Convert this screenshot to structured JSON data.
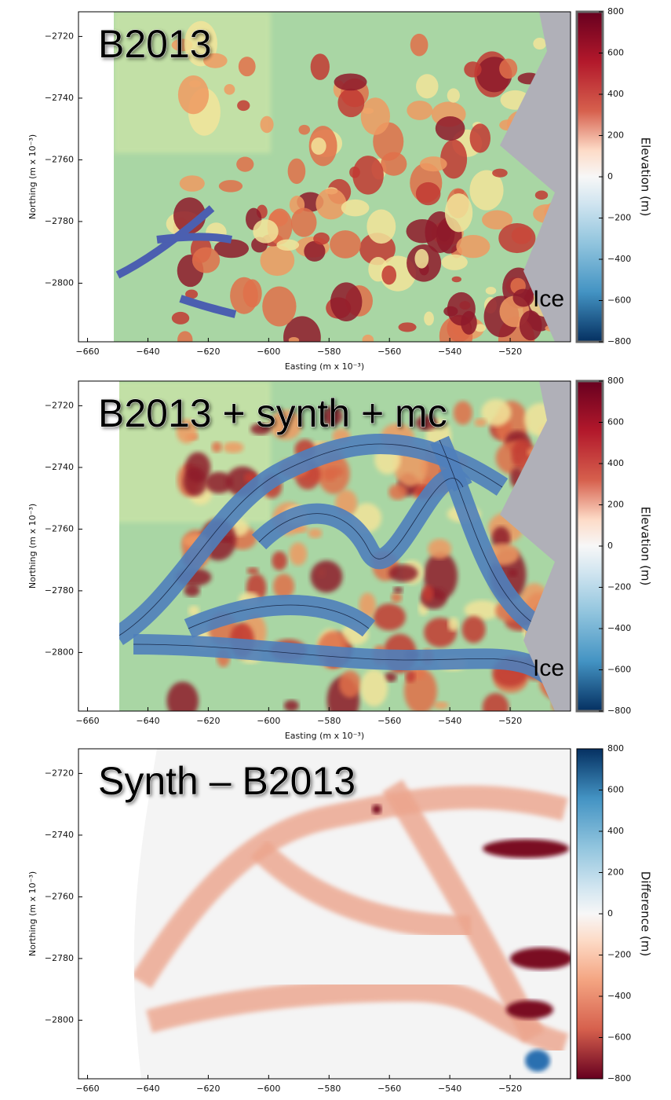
{
  "chart_data": [
    {
      "type": "heatmap",
      "title": "B2013",
      "annotation": "Ice",
      "xlabel": "Easting (m x 10⁻³)",
      "ylabel": "Northing (m x 10⁻³)",
      "xlim": [
        -663,
        -500
      ],
      "ylim": [
        -2819,
        -2712
      ],
      "xticks": [
        {
          "value": -660,
          "label": "−660"
        },
        {
          "value": -640,
          "label": "−640"
        },
        {
          "value": -620,
          "label": "−620"
        },
        {
          "value": -600,
          "label": "−600"
        },
        {
          "value": -580,
          "label": "−580"
        },
        {
          "value": -560,
          "label": "−560"
        },
        {
          "value": -540,
          "label": "−540"
        },
        {
          "value": -520,
          "label": "−520"
        }
      ],
      "yticks": [
        {
          "value": -2720,
          "label": "−2720"
        },
        {
          "value": -2740,
          "label": "−2740"
        },
        {
          "value": -2760,
          "label": "−2760"
        },
        {
          "value": -2780,
          "label": "−2780"
        },
        {
          "value": -2800,
          "label": "−2800"
        }
      ],
      "colorbar": {
        "label": "Elevation (m)",
        "colormap": "RdBu_r",
        "lim": [
          -800,
          800
        ],
        "ticks": [
          {
            "value": -800,
            "label": "−800"
          },
          {
            "value": -600,
            "label": "−600"
          },
          {
            "value": -400,
            "label": "−400"
          },
          {
            "value": -200,
            "label": "−200"
          },
          0,
          200,
          400,
          600,
          800
        ]
      }
    },
    {
      "type": "heatmap",
      "title": "B2013 + synth + mc",
      "annotation": "Ice",
      "xlabel": "Easting (m x 10⁻³)",
      "ylabel": "Northing (m x 10⁻³)",
      "xlim": [
        -663,
        -500
      ],
      "ylim": [
        -2819,
        -2712
      ],
      "xticks": [
        {
          "value": -660,
          "label": "−660"
        },
        {
          "value": -640,
          "label": "−640"
        },
        {
          "value": -620,
          "label": "−620"
        },
        {
          "value": -600,
          "label": "−600"
        },
        {
          "value": -580,
          "label": "−580"
        },
        {
          "value": -560,
          "label": "−560"
        },
        {
          "value": -540,
          "label": "−540"
        },
        {
          "value": -520,
          "label": "−520"
        }
      ],
      "yticks": [
        {
          "value": -2720,
          "label": "−2720"
        },
        {
          "value": -2740,
          "label": "−2740"
        },
        {
          "value": -2760,
          "label": "−2760"
        },
        {
          "value": -2780,
          "label": "−2780"
        },
        {
          "value": -2800,
          "label": "−2800"
        }
      ],
      "colorbar": {
        "label": "Elevation (m)",
        "colormap": "RdBu_r",
        "lim": [
          -800,
          800
        ],
        "ticks": [
          {
            "value": -800,
            "label": "−800"
          },
          {
            "value": -600,
            "label": "−600"
          },
          {
            "value": -400,
            "label": "−400"
          },
          {
            "value": -200,
            "label": "−200"
          },
          0,
          200,
          400,
          600,
          800
        ]
      }
    },
    {
      "type": "heatmap",
      "title": "Synth – B2013",
      "ylabel": "Northing (m x 10⁻³)",
      "xlim": [
        -663,
        -500
      ],
      "ylim": [
        -2819,
        -2712
      ],
      "xticks": [
        {
          "value": -660,
          "label": "−660"
        },
        {
          "value": -640,
          "label": "−640"
        },
        {
          "value": -620,
          "label": "−620"
        },
        {
          "value": -600,
          "label": "−600"
        },
        {
          "value": -580,
          "label": "−580"
        },
        {
          "value": -560,
          "label": "−560"
        },
        {
          "value": -540,
          "label": "−540"
        },
        {
          "value": -520,
          "label": "−520"
        }
      ],
      "yticks": [
        {
          "value": -2720,
          "label": "−2720"
        },
        {
          "value": -2740,
          "label": "−2740"
        },
        {
          "value": -2760,
          "label": "−2760"
        },
        {
          "value": -2780,
          "label": "−2780"
        },
        {
          "value": -2800,
          "label": "−2800"
        }
      ],
      "colorbar": {
        "label": "Difference (m)",
        "colormap": "RdBu",
        "lim": [
          -800,
          800
        ],
        "ticks": [
          {
            "value": -800,
            "label": "−800"
          },
          {
            "value": -600,
            "label": "−600"
          },
          {
            "value": -400,
            "label": "−400"
          },
          {
            "value": -200,
            "label": "−200"
          },
          0,
          200,
          400,
          600,
          800
        ]
      }
    }
  ]
}
